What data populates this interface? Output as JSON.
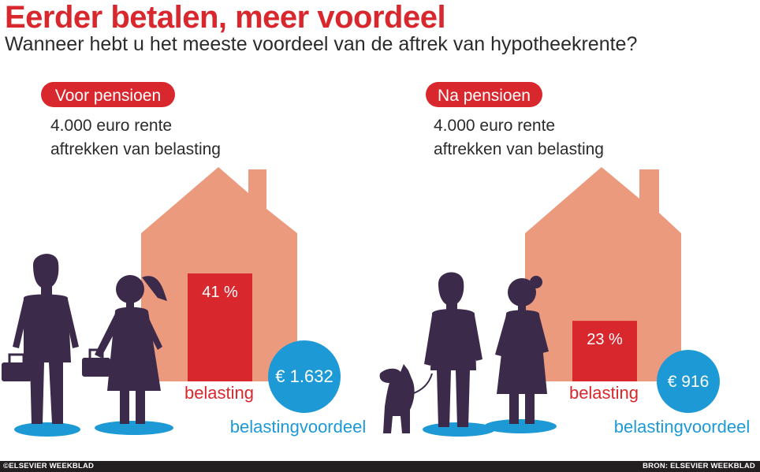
{
  "header": {
    "title": "Eerder betalen, meer voordeel",
    "subtitle": "Wanneer hebt u het meeste voordeel van de aftrek van hypotheekrente?"
  },
  "chart_data": {
    "type": "bar",
    "panels": [
      {
        "label": "Voor pensioen",
        "description_line1": "4.000 euro rente",
        "description_line2": "aftrekken van belasting",
        "tax_rate_percent": 41,
        "tax_rate_label": "41 %",
        "bar_label": "belasting",
        "benefit_label": "€ 1.632",
        "benefit_caption": "belastingvoordeel"
      },
      {
        "label": "Na pensioen",
        "description_line1": "4.000 euro rente",
        "description_line2": "aftrekken van belasting",
        "tax_rate_percent": 23,
        "tax_rate_label": "23 %",
        "bar_label": "belasting",
        "benefit_label": "€ 916",
        "benefit_caption": "belastingvoordeel"
      }
    ]
  },
  "colors": {
    "accent_red": "#d9272e",
    "house": "#ec9a7e",
    "circle_blue": "#1d9ad6",
    "figure": "#3b2a4a",
    "shadow": "#1d9ad6"
  },
  "footer": {
    "left": "©ELSEVIER WEEKBLAD",
    "right": "BRON: ELSEVIER WEEKBLAD"
  }
}
